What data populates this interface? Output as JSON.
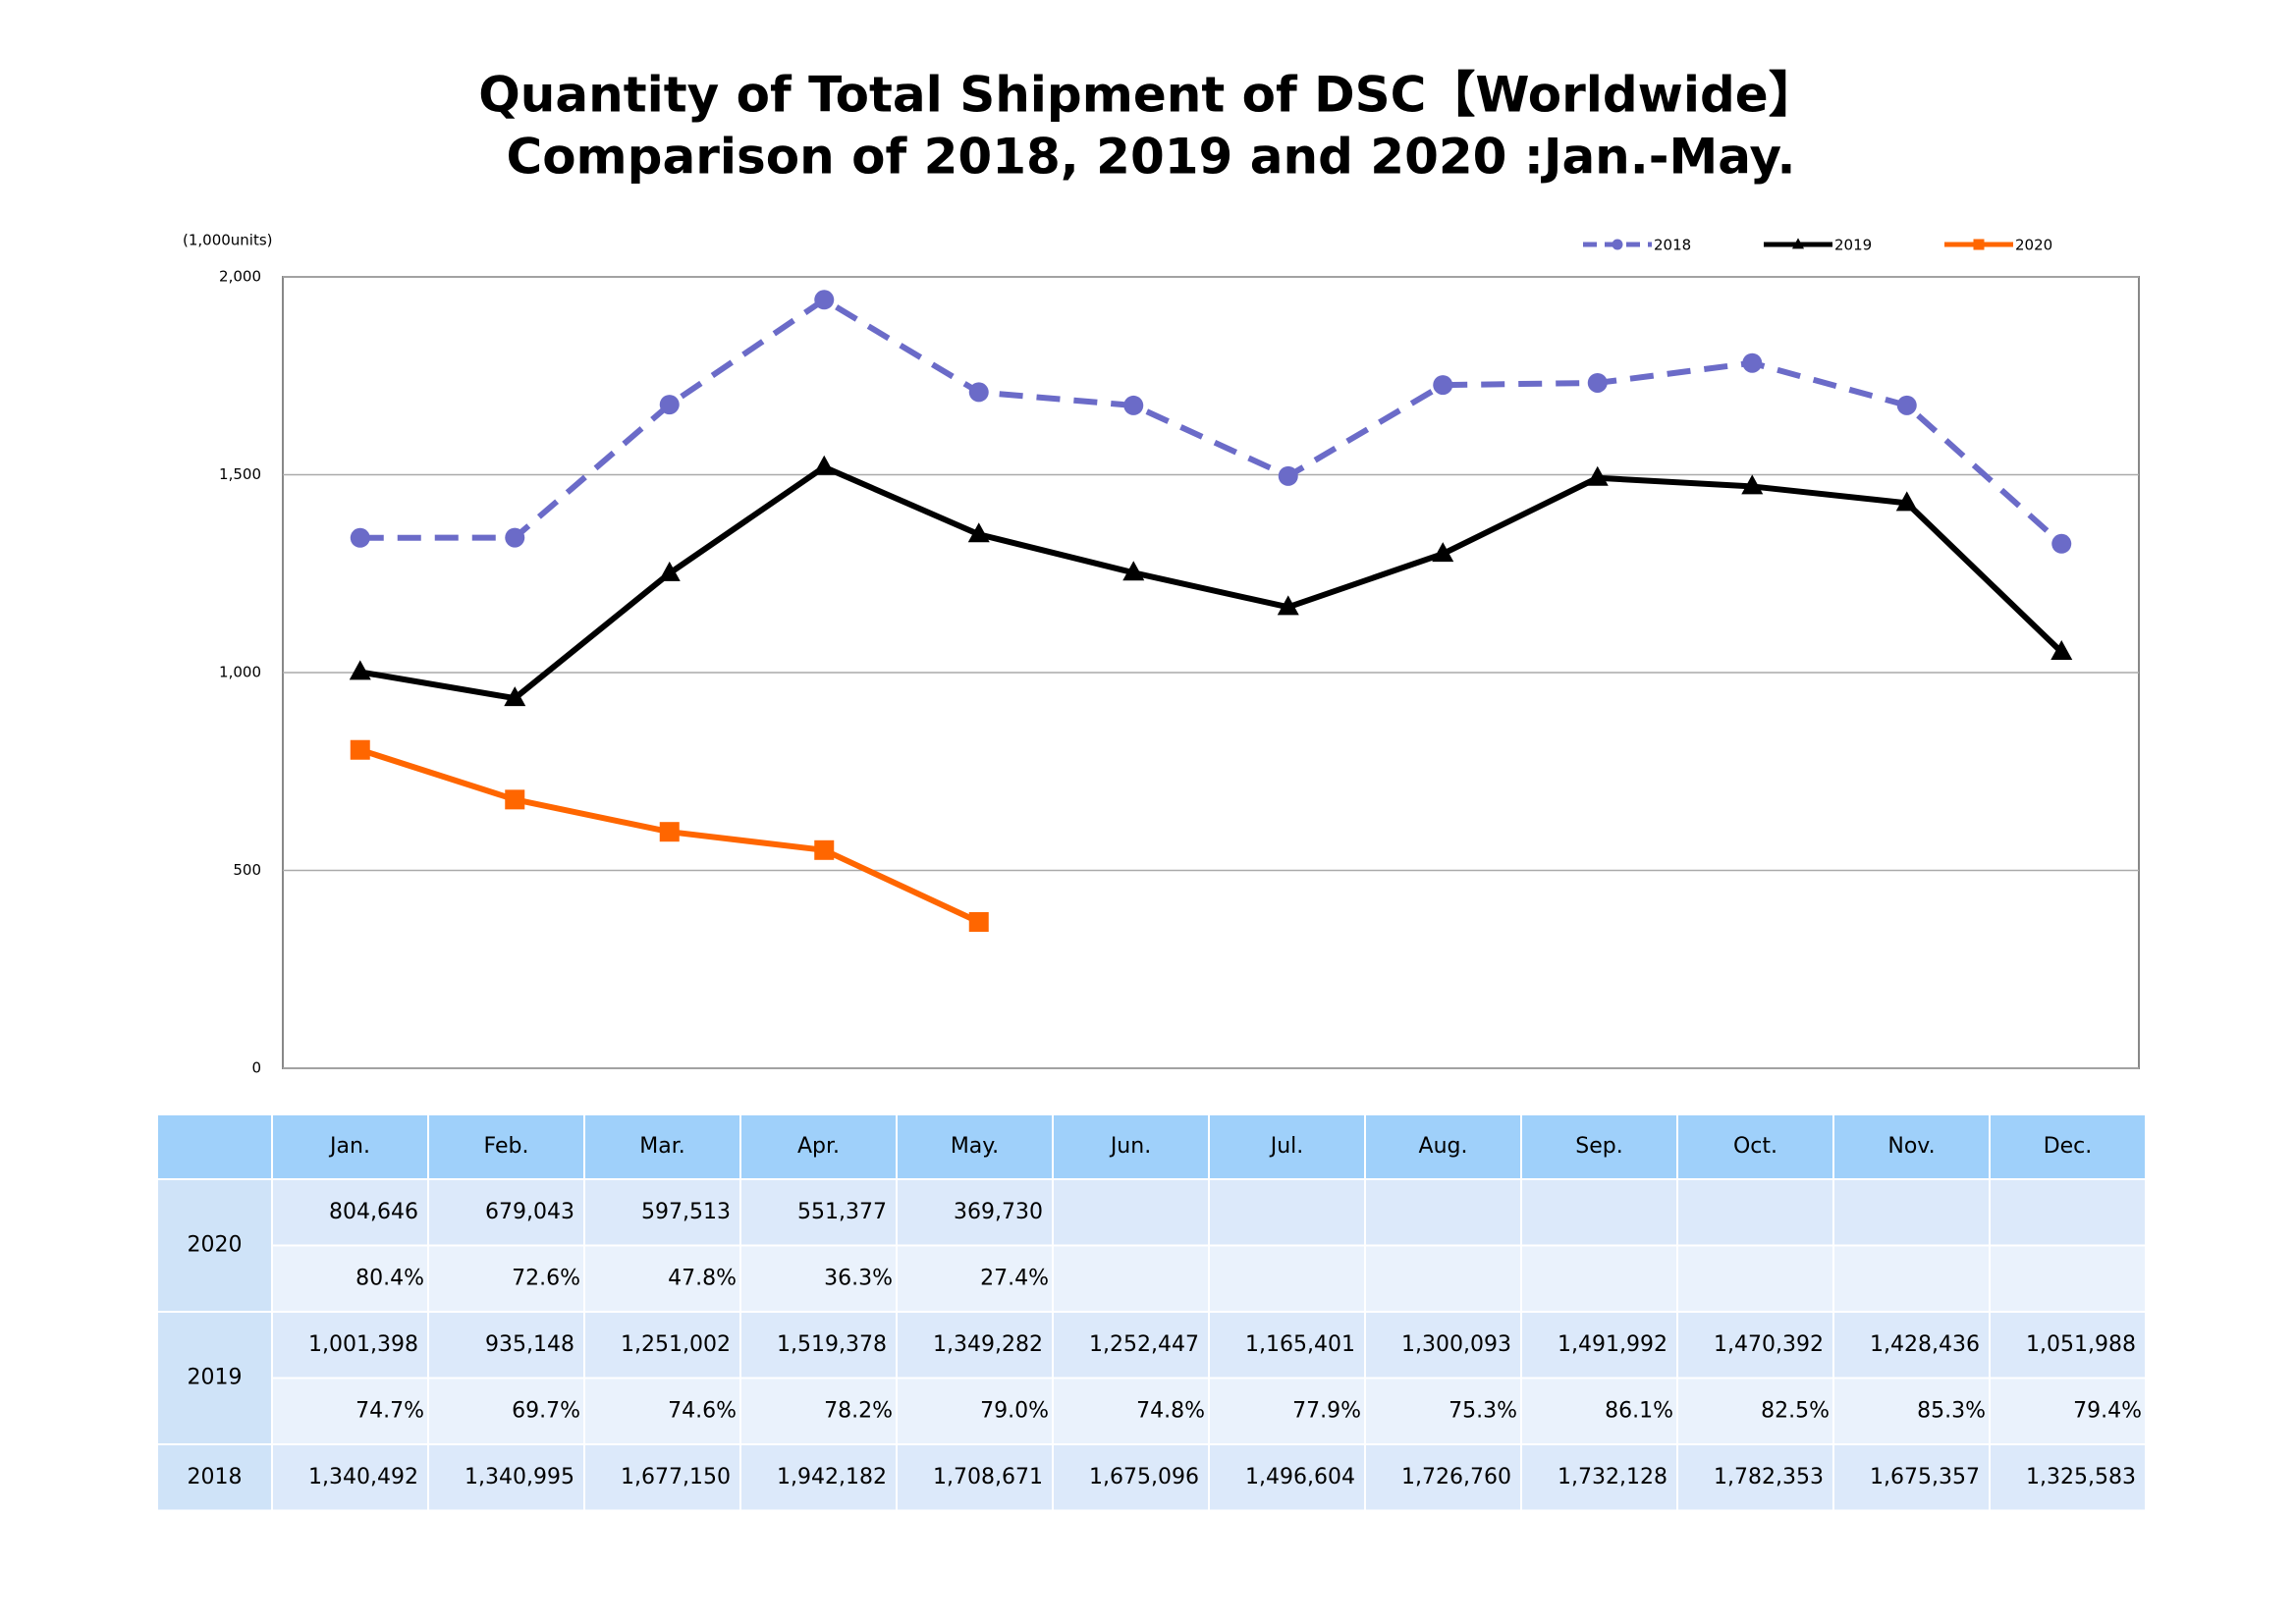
{
  "chart_data": {
    "type": "line",
    "title": "Quantity of Total Shipment of DSC【Worldwide】",
    "subtitle": "Comparison of 2018, 2019 and 2020 :Jan.-May.",
    "y_label": "(1,000units)",
    "categories": [
      "Jan.",
      "Feb.",
      "Mar.",
      "Apr.",
      "May.",
      "Jun.",
      "Jul.",
      "Aug.",
      "Sep.",
      "Oct.",
      "Nov.",
      "Dec."
    ],
    "ylim": [
      0,
      2000
    ],
    "yticks": [
      0,
      500,
      {
        "value": 1000,
        "label": "1,000"
      },
      {
        "value": 1500,
        "label": "1,500"
      },
      {
        "value": 2000,
        "label": "2,000"
      }
    ],
    "grid": true,
    "legend": "top-right",
    "series": [
      {
        "name": "2020",
        "color": "#ff6600",
        "marker": "square",
        "dash": false,
        "values": [
          804.646,
          679.043,
          597.513,
          551.377,
          369.73,
          null,
          null,
          null,
          null,
          null,
          null,
          null
        ],
        "value_labels": [
          "804,646",
          "679,043",
          "597,513",
          "551,377",
          "369,730",
          null,
          null,
          null,
          null,
          null,
          null,
          null
        ],
        "ratios": [
          "80.4%",
          "72.6%",
          "47.8%",
          "36.3%",
          "27.4%",
          null,
          null,
          null,
          null,
          null,
          null,
          null
        ]
      },
      {
        "name": "2019",
        "color": "#000000",
        "marker": "triangle",
        "dash": false,
        "values": [
          1001.398,
          935.148,
          1251.002,
          1519.378,
          1349.282,
          1252.447,
          1165.401,
          1300.093,
          1491.992,
          1470.392,
          1428.436,
          1051.988
        ],
        "value_labels": [
          "1,001,398",
          "935,148",
          "1,251,002",
          "1,519,378",
          "1,349,282",
          "1,252,447",
          "1,165,401",
          "1,300,093",
          "1,491,992",
          "1,470,392",
          "1,428,436",
          "1,051,988"
        ],
        "ratios": [
          "74.7%",
          "69.7%",
          "74.6%",
          "78.2%",
          "79.0%",
          "74.8%",
          "77.9%",
          "75.3%",
          "86.1%",
          "82.5%",
          "85.3%",
          "79.4%"
        ]
      },
      {
        "name": "2018",
        "color": "#6b6bc8",
        "marker": "circle",
        "dash": true,
        "values": [
          1340.492,
          1340.995,
          1677.15,
          1942.182,
          1708.671,
          1675.096,
          1496.604,
          1726.76,
          1732.128,
          1782.353,
          1675.357,
          1325.583
        ],
        "value_labels": [
          "1,340,492",
          "1,340,995",
          "1,677,150",
          "1,942,182",
          "1,708,671",
          "1,675,096",
          "1,496,604",
          "1,726,760",
          "1,732,128",
          "1,782,353",
          "1,675,357",
          "1,325,583"
        ]
      }
    ]
  }
}
